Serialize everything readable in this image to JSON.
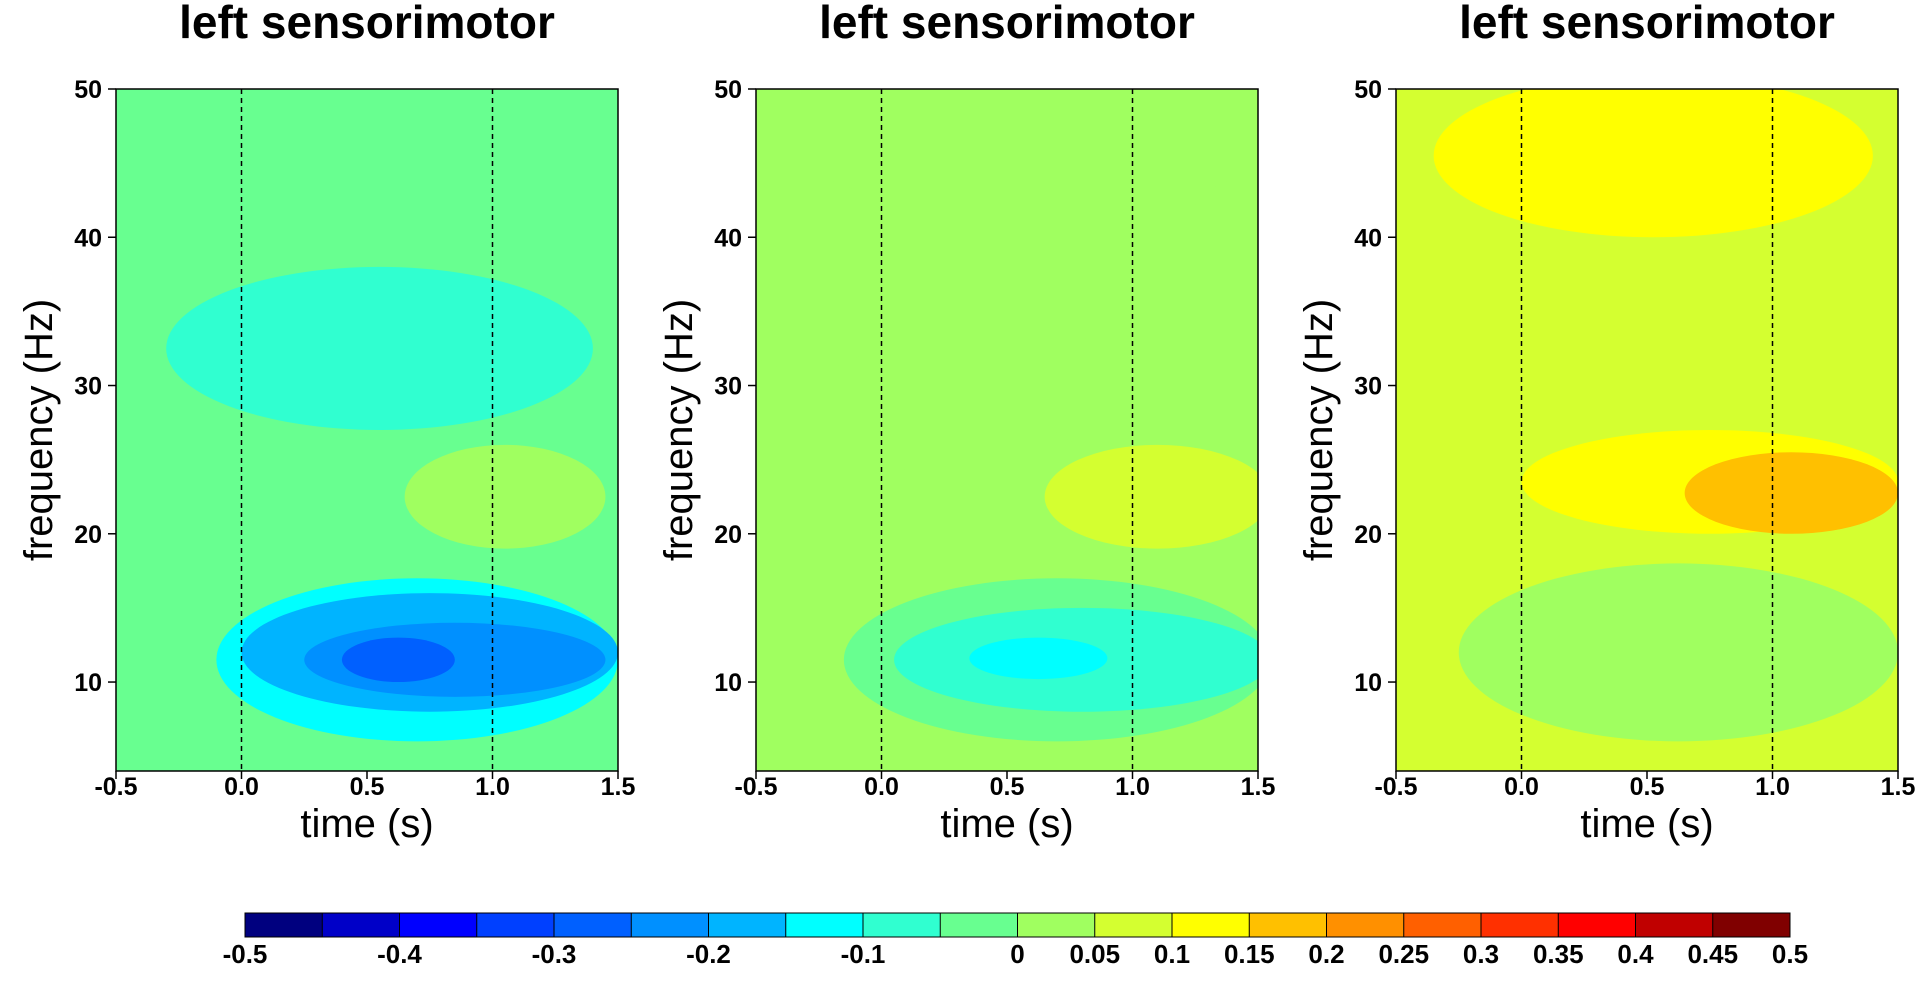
{
  "chart_data": [
    {
      "type": "heatmap",
      "title": "left sensorimotor",
      "xlabel": "time (s)",
      "ylabel": "frequency (Hz)",
      "xlim": [
        -0.5,
        1.5
      ],
      "ylim": [
        4,
        50
      ],
      "xticks": [
        "-0.5",
        "0.0",
        "0.5",
        "1.0",
        "1.5"
      ],
      "yticks": [
        "10",
        "20",
        "30",
        "40",
        "50"
      ],
      "vlines": [
        0.0,
        1.0
      ],
      "background_level": -0.05,
      "regions": [
        {
          "t": [
            -0.3,
            1.4
          ],
          "f": [
            27,
            38
          ],
          "level": -0.08
        },
        {
          "t": [
            0.65,
            1.45
          ],
          "f": [
            19,
            26
          ],
          "level": 0.0
        },
        {
          "t": [
            -0.1,
            1.5
          ],
          "f": [
            6,
            17
          ],
          "level": -0.15
        },
        {
          "t": [
            0.0,
            1.5
          ],
          "f": [
            8,
            16
          ],
          "level": -0.2
        },
        {
          "t": [
            0.25,
            1.45
          ],
          "f": [
            9,
            14
          ],
          "level": -0.25
        },
        {
          "t": [
            0.4,
            0.85
          ],
          "f": [
            10,
            13
          ],
          "level": -0.3
        }
      ]
    },
    {
      "type": "heatmap",
      "title": "left sensorimotor",
      "xlabel": "time (s)",
      "ylabel": "frequency (Hz)",
      "xlim": [
        -0.5,
        1.5
      ],
      "ylim": [
        4,
        50
      ],
      "xticks": [
        "-0.5",
        "0.0",
        "0.5",
        "1.0",
        "1.5"
      ],
      "yticks": [
        "10",
        "20",
        "30",
        "40",
        "50"
      ],
      "vlines": [
        0.0,
        1.0
      ],
      "background_level": 0.025,
      "regions": [
        {
          "t": [
            -0.7,
            0.1
          ],
          "f": [
            31,
            44
          ],
          "level": 0.0
        },
        {
          "t": [
            1.15,
            1.75
          ],
          "f": [
            30,
            44
          ],
          "level": 0.0
        },
        {
          "t": [
            0.6,
            1.6
          ],
          "f": [
            25,
            34
          ],
          "level": 0.0
        },
        {
          "t": [
            -0.6,
            1.55
          ],
          "f": [
            5,
            25
          ],
          "level": 0.0
        },
        {
          "t": [
            0.65,
            1.55
          ],
          "f": [
            19,
            26
          ],
          "level": 0.075
        },
        {
          "t": [
            -0.15,
            1.55
          ],
          "f": [
            6,
            17
          ],
          "level": -0.05
        },
        {
          "t": [
            0.05,
            1.55
          ],
          "f": [
            8,
            15
          ],
          "level": -0.1
        },
        {
          "t": [
            0.35,
            0.9
          ],
          "f": [
            10.2,
            13
          ],
          "level": -0.15
        }
      ]
    },
    {
      "type": "heatmap",
      "title": "left sensorimotor",
      "xlabel": "time (s)",
      "ylabel": "frequency (Hz)",
      "xlim": [
        -0.5,
        1.5
      ],
      "ylim": [
        4,
        50
      ],
      "xticks": [
        "-0.5",
        "0.0",
        "0.5",
        "1.0",
        "1.5"
      ],
      "yticks": [
        "10",
        "20",
        "30",
        "40",
        "50"
      ],
      "vlines": [
        0.0,
        1.0
      ],
      "background_level": 0.075,
      "regions": [
        {
          "t": [
            -0.35,
            1.4
          ],
          "f": [
            40,
            51
          ],
          "level": 0.125
        },
        {
          "t": [
            0.0,
            1.5
          ],
          "f": [
            20,
            27
          ],
          "level": 0.125
        },
        {
          "t": [
            0.65,
            1.5
          ],
          "f": [
            20,
            25.5
          ],
          "level": 0.175
        },
        {
          "t": [
            -0.25,
            1.5
          ],
          "f": [
            6,
            18
          ],
          "level": 0.025
        },
        {
          "t": [
            0.1,
            1.5
          ],
          "f": [
            9,
            15
          ],
          "level": 0.0
        }
      ]
    }
  ],
  "colorbar": {
    "levels": [
      -0.5,
      -0.45,
      -0.4,
      -0.35,
      -0.3,
      -0.25,
      -0.2,
      -0.15,
      -0.1,
      -0.05,
      0,
      0.05,
      0.1,
      0.15,
      0.2,
      0.25,
      0.3,
      0.35,
      0.4,
      0.45,
      0.5
    ],
    "colors": [
      "#00007f",
      "#0000c8",
      "#0000ff",
      "#0040ff",
      "#0060ff",
      "#0090ff",
      "#00b4ff",
      "#00ffff",
      "#30ffd0",
      "#68ff90",
      "#a0ff60",
      "#d4ff30",
      "#ffff00",
      "#ffc000",
      "#ff9000",
      "#ff6000",
      "#ff3000",
      "#ff0000",
      "#c00000",
      "#800000"
    ],
    "tick_labels": [
      "-0.5",
      "-0.4",
      "-0.3",
      "-0.2",
      "-0.1",
      "0",
      "0.05",
      "0.1",
      "0.15",
      "0.2",
      "0.25",
      "0.3",
      "0.35",
      "0.4",
      "0.45",
      "0.5"
    ]
  }
}
